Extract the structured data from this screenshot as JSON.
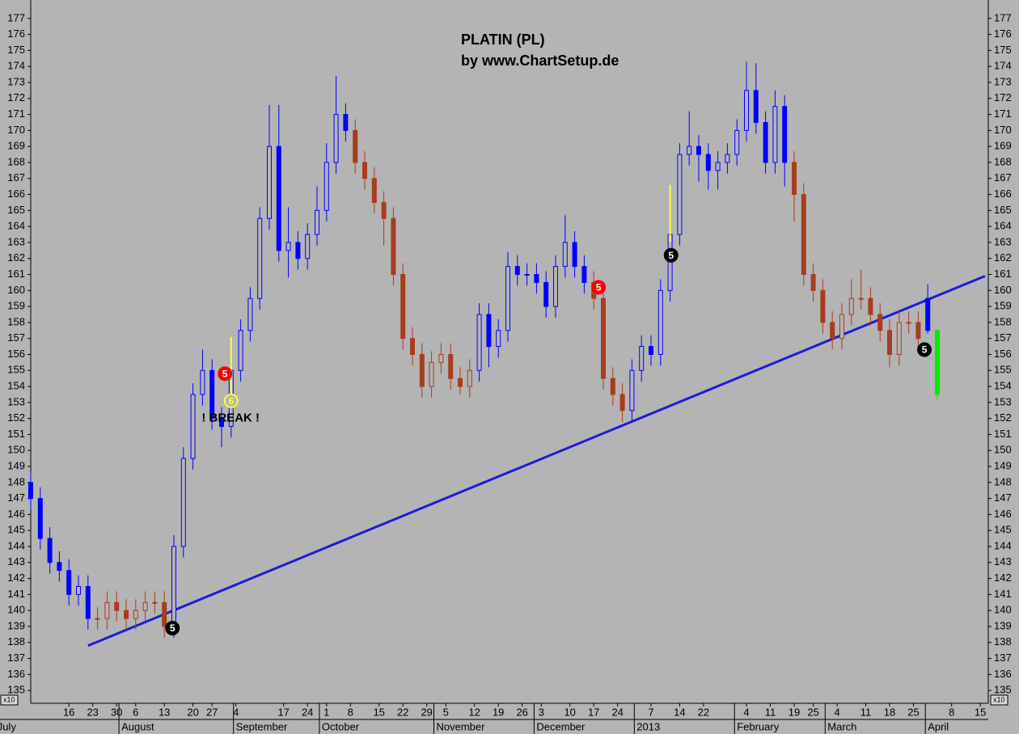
{
  "chart_data": {
    "type": "candlestick",
    "title": "PLATIN (PL)",
    "subtitle": "by www.ChartSetup.de",
    "axis_unit": "x10",
    "xlim": [
      0,
      200
    ],
    "ylim": [
      134.2,
      177.9
    ],
    "yticks": [
      135,
      136,
      137,
      138,
      139,
      140,
      141,
      142,
      143,
      144,
      145,
      146,
      147,
      148,
      149,
      150,
      151,
      152,
      153,
      154,
      155,
      156,
      157,
      158,
      159,
      160,
      161,
      162,
      163,
      164,
      165,
      166,
      167,
      168,
      169,
      170,
      171,
      172,
      173,
      174,
      175,
      176,
      177
    ],
    "xticks": [
      {
        "value": 8,
        "label": "16"
      },
      {
        "value": 13,
        "label": "23"
      },
      {
        "value": 18,
        "label": "30"
      },
      {
        "value": 22,
        "label": "6"
      },
      {
        "value": 28,
        "label": "13"
      },
      {
        "value": 34,
        "label": "20"
      },
      {
        "value": 38,
        "label": "27"
      },
      {
        "value": 43,
        "label": "4"
      },
      {
        "value": 53,
        "label": "17"
      },
      {
        "value": 58,
        "label": "24"
      },
      {
        "value": 62,
        "label": "1"
      },
      {
        "value": 67,
        "label": "8"
      },
      {
        "value": 73,
        "label": "15"
      },
      {
        "value": 78,
        "label": "22"
      },
      {
        "value": 83,
        "label": "29"
      },
      {
        "value": 87,
        "label": "5"
      },
      {
        "value": 93,
        "label": "12"
      },
      {
        "value": 98,
        "label": "19"
      },
      {
        "value": 103,
        "label": "26"
      },
      {
        "value": 107,
        "label": "3"
      },
      {
        "value": 113,
        "label": "10"
      },
      {
        "value": 118,
        "label": "17"
      },
      {
        "value": 123,
        "label": "24"
      },
      {
        "value": 130,
        "label": "7"
      },
      {
        "value": 136,
        "label": "14"
      },
      {
        "value": 141,
        "label": "22"
      },
      {
        "value": 150,
        "label": "4"
      },
      {
        "value": 155,
        "label": "11"
      },
      {
        "value": 160,
        "label": "19"
      },
      {
        "value": 164,
        "label": "25"
      },
      {
        "value": 169,
        "label": "4"
      },
      {
        "value": 175,
        "label": "11"
      },
      {
        "value": 180,
        "label": "18"
      },
      {
        "value": 185,
        "label": "25"
      },
      {
        "value": 193,
        "label": "8"
      },
      {
        "value": 199,
        "label": "15"
      }
    ],
    "months": [
      {
        "value": -7,
        "label": "July"
      },
      {
        "value": 19,
        "label": "August"
      },
      {
        "value": 43,
        "label": "September"
      },
      {
        "value": 61,
        "label": "October"
      },
      {
        "value": 85,
        "label": "November"
      },
      {
        "value": 106,
        "label": "December"
      },
      {
        "value": 127,
        "label": "2013"
      },
      {
        "value": 148,
        "label": "February"
      },
      {
        "value": 167,
        "label": "March"
      },
      {
        "value": 188,
        "label": "April"
      }
    ],
    "x": [
      0,
      2,
      4,
      6,
      8,
      10,
      12,
      14,
      16,
      18,
      20,
      22,
      24,
      26,
      28,
      30,
      32,
      34,
      36,
      38,
      40,
      42,
      44,
      46,
      48,
      50,
      52,
      54,
      56,
      58,
      60,
      62,
      64,
      66,
      68,
      70,
      72,
      74,
      76,
      78,
      80,
      82,
      84,
      86,
      88,
      90,
      92,
      94,
      96,
      98,
      100,
      102,
      104,
      106,
      108,
      110,
      112,
      114,
      116,
      118,
      120,
      122,
      124,
      126,
      128,
      130,
      132,
      134,
      136,
      138,
      140,
      142,
      144,
      146,
      148,
      150,
      152,
      154,
      156,
      158,
      160,
      162,
      164,
      166,
      168,
      170,
      172,
      174,
      176,
      178,
      180,
      182,
      184,
      186,
      188,
      190
    ],
    "open": [
      148,
      147,
      144.5,
      143,
      142.5,
      141,
      141.5,
      139.5,
      139.5,
      140.5,
      140,
      139.5,
      140,
      140.5,
      140.5,
      139,
      144,
      149.5,
      153.5,
      155,
      152,
      151.5,
      155,
      157.5,
      159.5,
      164.5,
      169,
      162.5,
      163,
      162,
      163.5,
      165,
      168,
      171,
      170,
      168,
      167,
      165.5,
      164.5,
      161,
      157,
      156,
      154,
      155.5,
      156,
      154.5,
      154,
      155,
      158.5,
      156.5,
      157.5,
      161.5,
      161,
      161,
      160.5,
      159,
      161.5,
      163,
      161.5,
      160.5,
      159.5,
      154.5,
      153.5,
      152.5,
      155,
      156.5,
      156,
      160,
      163.5,
      168.5,
      169,
      168.5,
      167.5,
      168,
      168.5,
      170,
      172.5,
      170.5,
      168,
      171.5,
      168,
      166,
      161,
      160,
      158,
      157,
      158.5,
      159.5,
      159.5,
      158.5,
      157.5,
      156,
      158,
      158,
      159.5,
      157.5
    ],
    "high": [
      148.7,
      147.7,
      145.2,
      143.7,
      143.2,
      142.2,
      142.2,
      140.2,
      141.2,
      141.2,
      140.7,
      140.7,
      141.2,
      141.2,
      141.2,
      144.7,
      150.2,
      154.2,
      156.3,
      155.7,
      152.7,
      155.7,
      158.2,
      160.2,
      165.2,
      171.6,
      171.6,
      165.2,
      163.7,
      164.2,
      166.5,
      169.2,
      173.4,
      171.7,
      170.7,
      168.7,
      167.7,
      166.2,
      165.2,
      161.7,
      157.7,
      156.7,
      156.2,
      156.7,
      156.7,
      155.2,
      155.7,
      159.2,
      159.2,
      158.2,
      162.4,
      162.2,
      161.7,
      161.7,
      161.2,
      162.2,
      164.7,
      163.7,
      162.2,
      161.2,
      160.2,
      155.2,
      154.2,
      155.7,
      157.2,
      157.2,
      160.7,
      164.2,
      169.2,
      171.2,
      169.7,
      169.2,
      168.7,
      169.2,
      170.7,
      174.3,
      174.2,
      171.2,
      172.5,
      172.2,
      168.7,
      166.7,
      161.7,
      160.7,
      158.7,
      159.2,
      160.7,
      161.3,
      160.2,
      159.2,
      158.2,
      158.7,
      158.7,
      158.7,
      160.4,
      157.6
    ],
    "low": [
      146.3,
      143.8,
      142.3,
      141.8,
      140.3,
      140.3,
      138.8,
      138.8,
      138.8,
      139.3,
      138.8,
      138.8,
      139.3,
      139.8,
      138.3,
      138.3,
      143.3,
      148.8,
      152.8,
      151.3,
      150.2,
      150.8,
      154.3,
      156.8,
      158.8,
      163.8,
      161.8,
      160.8,
      161.3,
      161.3,
      162.8,
      164.3,
      167.3,
      169.3,
      167.3,
      166.3,
      164.8,
      162.8,
      160.3,
      156.3,
      155.3,
      153.3,
      153.3,
      154.8,
      153.8,
      153.5,
      153.3,
      154.3,
      155.2,
      155.8,
      156.8,
      160.3,
      160.3,
      159.8,
      158.3,
      158.3,
      160.8,
      160.8,
      159.8,
      158.8,
      153.8,
      152.8,
      151.8,
      151.8,
      154.3,
      155.3,
      155.3,
      159.3,
      162.8,
      167.8,
      166.8,
      166.3,
      166.3,
      167.3,
      167.8,
      169.3,
      169.8,
      167.3,
      167.3,
      166.5,
      164.3,
      160.3,
      159.3,
      157.3,
      156.3,
      156.3,
      157.8,
      158.8,
      157.8,
      156.8,
      155.2,
      155.3,
      157.3,
      156.3,
      157.3,
      153.1
    ],
    "close": [
      147,
      144.5,
      143,
      142.5,
      141,
      141.5,
      139.5,
      139.5,
      140.5,
      140,
      139.5,
      140,
      140.5,
      140.5,
      139,
      144,
      149.5,
      153.5,
      155,
      152,
      151.5,
      155,
      157.5,
      159.5,
      164.5,
      169,
      162.5,
      163,
      162,
      163.5,
      165,
      168,
      171,
      170,
      168,
      167,
      165.5,
      164.5,
      161,
      157,
      156,
      154,
      155.5,
      156,
      154.5,
      154,
      155,
      158.5,
      156.5,
      157.5,
      161.5,
      161,
      161,
      160.5,
      159,
      161.5,
      163,
      161.5,
      160.5,
      159.5,
      154.5,
      153.5,
      152.5,
      155,
      156.5,
      156,
      160,
      163.5,
      168.5,
      169,
      168.5,
      167.5,
      168,
      168.5,
      170,
      172.5,
      170.5,
      168,
      171.5,
      168,
      166,
      161,
      160,
      158,
      157,
      158.5,
      159.5,
      159.5,
      158.5,
      157.5,
      156,
      158,
      158,
      157,
      157.5,
      153.5
    ],
    "colors": [
      "#0000ff",
      "#0000ff",
      "#0000ff",
      "#0000ff",
      "#0000ff",
      "#0000ff",
      "#0000ff",
      "#a83c1e",
      "#a83c1e",
      "#a83c1e",
      "#a83c1e",
      "#a83c1e",
      "#a83c1e",
      "#a83c1e",
      "#a83c1e",
      "#0000ff",
      "#0000ff",
      "#0000ff",
      "#0000ff",
      "#0000ff",
      "#0000ff",
      "#0000ff",
      "#0000ff",
      "#0000ff",
      "#0000ff",
      "#0000ff",
      "#0000ff",
      "#0000ff",
      "#0000ff",
      "#0000ff",
      "#0000ff",
      "#0000ff",
      "#0000ff",
      "#0000ff",
      "#a83c1e",
      "#a83c1e",
      "#a83c1e",
      "#a83c1e",
      "#a83c1e",
      "#a83c1e",
      "#a83c1e",
      "#a83c1e",
      "#a83c1e",
      "#a83c1e",
      "#a83c1e",
      "#a83c1e",
      "#a83c1e",
      "#0000ff",
      "#0000ff",
      "#0000ff",
      "#0000ff",
      "#0000ff",
      "#0000ff",
      "#0000ff",
      "#0000ff",
      "#0000ff",
      "#0000ff",
      "#0000ff",
      "#0000ff",
      "#a83c1e",
      "#a83c1e",
      "#a83c1e",
      "#a83c1e",
      "#0000ff",
      "#0000ff",
      "#0000ff",
      "#0000ff",
      "#0000ff",
      "#0000ff",
      "#0000ff",
      "#0000ff",
      "#0000ff",
      "#0000ff",
      "#0000ff",
      "#0000ff",
      "#0000ff",
      "#0000ff",
      "#0000ff",
      "#0000ff",
      "#0000ff",
      "#a83c1e",
      "#a83c1e",
      "#a83c1e",
      "#a83c1e",
      "#a83c1e",
      "#a83c1e",
      "#a83c1e",
      "#a83c1e",
      "#a83c1e",
      "#a83c1e",
      "#a83c1e",
      "#a83c1e",
      "#a83c1e",
      "#a83c1e",
      "#0000ff",
      "#00ee00"
    ],
    "trendline": {
      "x": [
        12,
        200
      ],
      "y": [
        137.8,
        160.9
      ],
      "color": "#1c1cd8"
    },
    "signal_lines": [
      {
        "x": 42,
        "from": 153.2,
        "to": 157.1,
        "color": "#ffff33"
      },
      {
        "x": 134,
        "from": 163,
        "to": 166.6,
        "color": "#ffff33"
      }
    ],
    "markers": [
      {
        "x": 29.7,
        "y": 138.9,
        "label": 5,
        "color": "#000000",
        "text_color": "#ffffff"
      },
      {
        "x": 40.7,
        "y": 154.8,
        "label": 5,
        "color": "#ff0000",
        "text_color": "#ffffff"
      },
      {
        "x": 42,
        "y": 153.1,
        "label": 6,
        "color": "#ffff33",
        "text_color": "#ffff33"
      },
      {
        "x": 119,
        "y": 160.2,
        "label": 5,
        "color": "#ff0000",
        "text_color": "#ffffff"
      },
      {
        "x": 134.2,
        "y": 162.2,
        "label": 5,
        "color": "#000000",
        "text_color": "#ffffff"
      },
      {
        "x": 187.3,
        "y": 156.3,
        "label": 5,
        "color": "#000000",
        "text_color": "#ffffff"
      }
    ],
    "annotation": {
      "text": "! BREAK !",
      "x": 41.9,
      "y": 152.0
    }
  }
}
